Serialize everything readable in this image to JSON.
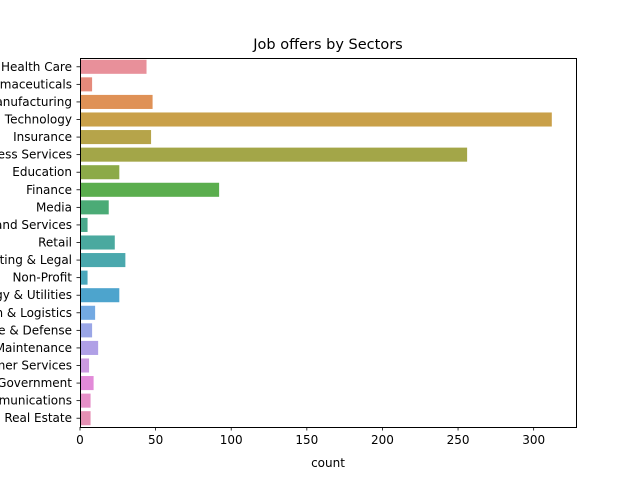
{
  "chart_data": {
    "type": "bar",
    "orientation": "horizontal",
    "title": "Job offers by Sectors",
    "xlabel": "count",
    "ylabel": "",
    "xlim": [
      0,
      328
    ],
    "xticks": [
      0,
      50,
      100,
      150,
      200,
      250,
      300
    ],
    "categories": [
      "Health Care",
      "Pharmaceuticals",
      "Manufacturing",
      "Information Technology",
      "Insurance",
      "Business Services",
      "Education",
      "Finance",
      "Media",
      "Consumer Goods and Services",
      "Retail",
      "Accounting & Legal",
      "Non-Profit",
      "Oil, Gas, Energy & Utilities",
      "Transportation & Logistics",
      "Aerospace & Defense",
      "Construction, Repair & Maintenance",
      "Consumer Services",
      "Government",
      "Telecommunications",
      "Real Estate"
    ],
    "values": [
      44,
      8,
      48,
      312,
      47,
      256,
      26,
      92,
      19,
      5,
      23,
      30,
      5,
      26,
      10,
      8,
      12,
      6,
      9,
      7,
      7
    ],
    "colors": [
      "#e8909a",
      "#e58a7b",
      "#df9156",
      "#c9a049",
      "#b6a44a",
      "#a3a648",
      "#8caa48",
      "#5bae4e",
      "#4bab76",
      "#4aa98c",
      "#4aa99f",
      "#4aa8ad",
      "#4ba7bb",
      "#4da4cd",
      "#73a9e2",
      "#9aa6e6",
      "#b0a0e6",
      "#cc9ae0",
      "#e28ad8",
      "#e690c8",
      "#e590b4"
    ],
    "grid": false,
    "legend": "none"
  }
}
